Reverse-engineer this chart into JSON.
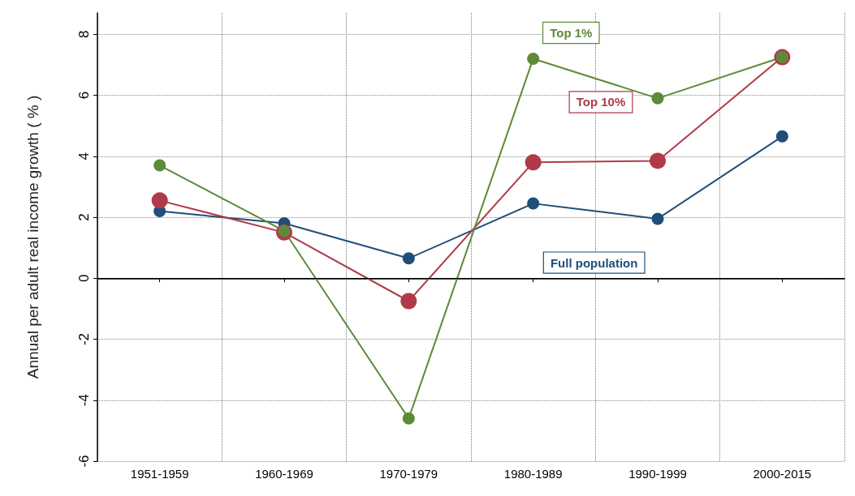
{
  "chart_data": {
    "type": "line",
    "ylabel": "Annual per adult real income growth ( % )",
    "categories": [
      "1951-1959",
      "1960-1969",
      "1970-1979",
      "1980-1989",
      "1990-1999",
      "2000-2015"
    ],
    "series": [
      {
        "name": "Full population",
        "color": "#1f4e79",
        "values": [
          2.2,
          1.8,
          0.65,
          2.45,
          1.95,
          4.65
        ]
      },
      {
        "name": "Top 10%",
        "color": "#b03a48",
        "values": [
          2.55,
          1.5,
          -0.75,
          3.8,
          3.85,
          7.25
        ]
      },
      {
        "name": "Top 1%",
        "color": "#5e8a3a",
        "values": [
          3.7,
          1.55,
          -4.6,
          7.2,
          5.9,
          7.25
        ]
      }
    ],
    "ylim": [
      -6,
      8.7
    ],
    "yticks": [
      -6,
      -4,
      -2,
      0,
      2,
      4,
      6,
      8
    ],
    "grid": true,
    "legend": false,
    "marker": "circle",
    "line_style": "solid",
    "ref_lines": [
      {
        "axis": "y",
        "value": 0,
        "color": "#000000"
      }
    ]
  }
}
